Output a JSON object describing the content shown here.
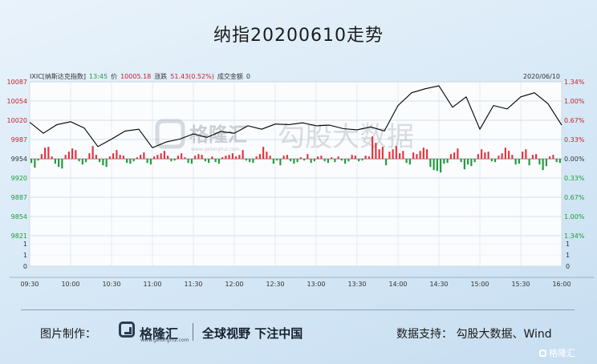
{
  "title": "纳指20200610走势",
  "info": {
    "name": "IXIC[纳斯达克指数]",
    "time": "13:45",
    "price_label": "价",
    "price": "10005.18",
    "change_label": "涨跌",
    "change": "51.43(0.52%)",
    "amount_label": "成交金额",
    "amount": "0",
    "date": "2020/06/10"
  },
  "watermark": {
    "logo_text": "格隆汇",
    "logo_url": "www.gelonghui.com",
    "text": "勾股大数据"
  },
  "chart_data": {
    "type": "line",
    "title": "纳指20200610走势",
    "prev_close": 9953.75,
    "x_ticks": [
      "09:30",
      "10:00",
      "10:30",
      "11:00",
      "11:30",
      "12:00",
      "12:30",
      "13:00",
      "13:30",
      "14:00",
      "14:30",
      "15:00",
      "15:30",
      "16:00"
    ],
    "y_ticks_left": [
      "10087",
      "10054",
      "10020",
      "9987",
      "9954",
      "9920",
      "9887",
      "9854",
      "9821"
    ],
    "y_ticks_right": [
      "1.34%",
      "1.00%",
      "0.67%",
      "0.33%",
      "0.00%",
      "0.33%",
      "0.67%",
      "1.00%",
      "1.34%"
    ],
    "ylim": [
      9821,
      10087
    ],
    "volume_ticks_left": [
      "1",
      "1",
      "0"
    ],
    "volume_ticks_right": [
      "1",
      "1",
      "0"
    ],
    "line_color": "#000000",
    "up_color": "#e8303a",
    "down_color": "#1f9a3a",
    "series": [
      {
        "x": [
          "09:30",
          "09:40",
          "09:50",
          "10:00",
          "10:10",
          "10:20",
          "10:30",
          "10:40",
          "10:50",
          "11:00",
          "11:10",
          "11:20",
          "11:30",
          "11:40",
          "11:50",
          "12:00",
          "12:10",
          "12:20",
          "12:30",
          "12:40",
          "12:50",
          "13:00",
          "13:10",
          "13:20",
          "13:30",
          "13:40",
          "13:50",
          "14:00",
          "14:10",
          "14:20",
          "14:30",
          "14:40",
          "14:50",
          "15:00",
          "15:10",
          "15:20",
          "15:30",
          "15:40",
          "15:50",
          "16:00"
        ],
        "values": [
          10017,
          9998,
          10013,
          10018,
          10007,
          9975,
          9988,
          10002,
          10005,
          9973,
          9983,
          9988,
          9997,
          9991,
          10001,
          9998,
          10011,
          10005,
          10014,
          10013,
          10016,
          10011,
          10012,
          10006,
          10004,
          10009,
          10002,
          10046,
          10068,
          10075,
          10080,
          10043,
          10061,
          10005,
          10046,
          10040,
          10061,
          10068,
          10049,
          10012
        ]
      }
    ],
    "volume_bars": [
      -10,
      -22,
      -4,
      12,
      28,
      30,
      6,
      -12,
      -20,
      -24,
      10,
      18,
      26,
      22,
      -6,
      -14,
      -8,
      14,
      32,
      10,
      -8,
      -16,
      -20,
      6,
      14,
      22,
      10,
      8,
      -10,
      -12,
      -6,
      4,
      10,
      16,
      -10,
      -14,
      6,
      10,
      14,
      20,
      8,
      -6,
      -4,
      8,
      14,
      4,
      -10,
      -12,
      8,
      12,
      10,
      -6,
      -10,
      6,
      -8,
      -12,
      4,
      8,
      10,
      14,
      6,
      10,
      22,
      -4,
      -8,
      -10,
      6,
      12,
      30,
      18,
      8,
      -12,
      -4,
      -16,
      8,
      10,
      -6,
      -12,
      -8,
      4,
      -4,
      12,
      -10,
      -6,
      6,
      8,
      -6,
      -10,
      4,
      -8,
      6,
      -4,
      -12,
      -6,
      10,
      8,
      -6,
      -4,
      8,
      6,
      56,
      40,
      24,
      30,
      -16,
      18,
      24,
      32,
      14,
      20,
      -10,
      -14,
      16,
      12,
      20,
      28,
      24,
      -20,
      -28,
      -30,
      -34,
      -12,
      -10,
      12,
      16,
      26,
      -8,
      -26,
      -14,
      -18,
      -8,
      12,
      24,
      16,
      18,
      -6,
      -8,
      8,
      14,
      28,
      20,
      10,
      -14,
      -12,
      18,
      24,
      -16,
      10,
      12,
      -14,
      -28,
      -18,
      6,
      10,
      -8,
      -10
    ]
  },
  "footer": {
    "credit_label": "图片制作：",
    "logo_text": "格隆汇",
    "logo_url": "www.gelonghui.com",
    "slogan": "全球视野 下注中国",
    "source": "数据支持：  勾股大数据、Wind"
  },
  "corner_logo": "格隆汇"
}
